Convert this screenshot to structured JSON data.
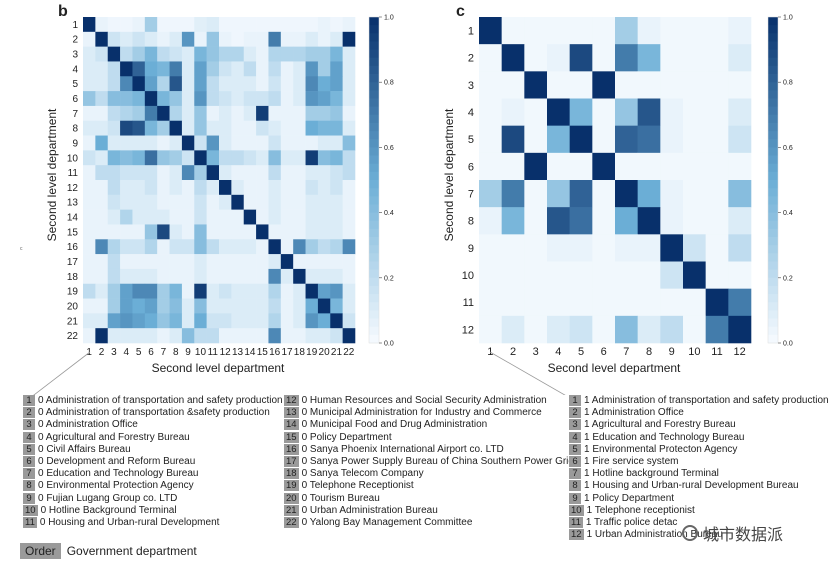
{
  "chart_data": [
    {
      "type": "heatmap",
      "panel_label": "b",
      "xlabel": "Second level department",
      "ylabel": "Second level department",
      "x_ticks": [
        "1",
        "2",
        "3",
        "4",
        "5",
        "6",
        "7",
        "8",
        "9",
        "10",
        "11",
        "12",
        "13",
        "14",
        "15",
        "16",
        "17",
        "18",
        "19",
        "20",
        "21",
        "22"
      ],
      "y_ticks": [
        "1",
        "2",
        "3",
        "4",
        "5",
        "6",
        "7",
        "8",
        "9",
        "10",
        "11",
        "12",
        "13",
        "14",
        "15",
        "16",
        "17",
        "18",
        "19",
        "20",
        "21",
        "22"
      ],
      "colorbar_ticks": [
        "1.0",
        "0.8",
        "0.6",
        "0.4",
        "0.2",
        "0.0"
      ],
      "vmin": 0,
      "vmax": 1,
      "values": [
        [
          1.0,
          0.05,
          0.03,
          0.03,
          0.05,
          0.3,
          0.03,
          0.03,
          0.03,
          0.08,
          0.1,
          0.03,
          0.03,
          0.03,
          0.03,
          0.03,
          0.03,
          0.03,
          0.03,
          0.05,
          0.03,
          0.05
        ],
        [
          0.05,
          1.0,
          0.15,
          0.1,
          0.15,
          0.1,
          0.05,
          0.1,
          0.6,
          0.05,
          0.35,
          0.05,
          0.03,
          0.05,
          0.05,
          0.7,
          0.05,
          0.05,
          0.1,
          0.05,
          0.1,
          1.0
        ],
        [
          0.1,
          0.15,
          1.0,
          0.2,
          0.3,
          0.45,
          0.2,
          0.15,
          0.1,
          0.45,
          0.35,
          0.25,
          0.25,
          0.1,
          0.05,
          0.25,
          0.25,
          0.25,
          0.3,
          0.3,
          0.45,
          0.1
        ],
        [
          0.1,
          0.1,
          0.2,
          1.0,
          0.8,
          0.5,
          0.45,
          0.7,
          0.1,
          0.55,
          0.3,
          0.15,
          0.1,
          0.2,
          0.05,
          0.2,
          0.05,
          0.1,
          0.6,
          0.3,
          0.55,
          0.1
        ],
        [
          0.1,
          0.1,
          0.2,
          0.65,
          1.0,
          0.55,
          0.25,
          0.85,
          0.1,
          0.55,
          0.2,
          0.1,
          0.1,
          0.1,
          0.05,
          0.15,
          0.05,
          0.1,
          0.65,
          0.5,
          0.55,
          0.1
        ],
        [
          0.35,
          0.2,
          0.4,
          0.4,
          0.45,
          1.0,
          0.45,
          0.35,
          0.1,
          0.6,
          0.2,
          0.15,
          0.1,
          0.15,
          0.15,
          0.2,
          0.05,
          0.1,
          0.6,
          0.55,
          0.45,
          0.1
        ],
        [
          0.05,
          0.05,
          0.2,
          0.25,
          0.3,
          0.7,
          1.0,
          0.25,
          0.1,
          0.35,
          0.05,
          0.1,
          0.05,
          0.1,
          0.95,
          0.05,
          0.05,
          0.05,
          0.3,
          0.3,
          0.35,
          0.05
        ],
        [
          0.1,
          0.1,
          0.15,
          0.9,
          0.85,
          0.45,
          0.3,
          1.0,
          0.1,
          0.35,
          0.1,
          0.1,
          0.05,
          0.05,
          0.15,
          0.1,
          0.05,
          0.05,
          0.5,
          0.45,
          0.45,
          0.1
        ],
        [
          0.05,
          0.5,
          0.1,
          0.1,
          0.1,
          0.1,
          0.05,
          0.1,
          1.0,
          0.15,
          0.6,
          0.1,
          0.05,
          0.05,
          0.05,
          0.15,
          0.05,
          0.05,
          0.05,
          0.1,
          0.1,
          0.4
        ],
        [
          0.15,
          0.1,
          0.45,
          0.4,
          0.45,
          0.75,
          0.35,
          0.3,
          0.15,
          1.0,
          0.45,
          0.2,
          0.2,
          0.15,
          0.1,
          0.4,
          0.1,
          0.1,
          0.95,
          0.4,
          0.45,
          0.2
        ],
        [
          0.05,
          0.2,
          0.2,
          0.15,
          0.15,
          0.15,
          0.05,
          0.1,
          0.65,
          0.3,
          1.0,
          0.1,
          0.05,
          0.05,
          0.05,
          0.2,
          0.05,
          0.05,
          0.1,
          0.1,
          0.15,
          0.2
        ],
        [
          0.05,
          0.05,
          0.2,
          0.1,
          0.1,
          0.15,
          0.05,
          0.1,
          0.05,
          0.2,
          0.1,
          1.0,
          0.1,
          0.05,
          0.05,
          0.1,
          0.05,
          0.05,
          0.15,
          0.1,
          0.15,
          0.05
        ],
        [
          0.05,
          0.05,
          0.15,
          0.1,
          0.1,
          0.1,
          0.05,
          0.05,
          0.05,
          0.15,
          0.05,
          0.1,
          1.0,
          0.05,
          0.05,
          0.1,
          0.05,
          0.05,
          0.1,
          0.1,
          0.1,
          0.05
        ],
        [
          0.05,
          0.05,
          0.1,
          0.25,
          0.1,
          0.1,
          0.1,
          0.05,
          0.05,
          0.15,
          0.05,
          0.05,
          0.05,
          1.0,
          0.05,
          0.1,
          0.05,
          0.05,
          0.1,
          0.1,
          0.1,
          0.05
        ],
        [
          0.05,
          0.05,
          0.05,
          0.05,
          0.05,
          0.35,
          0.9,
          0.1,
          0.05,
          0.4,
          0.05,
          0.05,
          0.05,
          0.05,
          1.0,
          0.05,
          0.05,
          0.05,
          0.1,
          0.1,
          0.1,
          0.05
        ],
        [
          0.05,
          0.65,
          0.25,
          0.15,
          0.15,
          0.25,
          0.05,
          0.15,
          0.15,
          0.4,
          0.2,
          0.1,
          0.1,
          0.1,
          0.05,
          1.0,
          0.05,
          0.65,
          0.3,
          0.2,
          0.25,
          0.65
        ],
        [
          0.05,
          0.05,
          0.2,
          0.05,
          0.05,
          0.05,
          0.05,
          0.05,
          0.05,
          0.1,
          0.05,
          0.05,
          0.05,
          0.05,
          0.05,
          0.1,
          1.0,
          0.05,
          0.05,
          0.05,
          0.05,
          0.05
        ],
        [
          0.05,
          0.05,
          0.2,
          0.1,
          0.1,
          0.1,
          0.05,
          0.05,
          0.05,
          0.1,
          0.05,
          0.05,
          0.05,
          0.05,
          0.05,
          0.65,
          0.1,
          1.0,
          0.1,
          0.1,
          0.1,
          0.05
        ],
        [
          0.2,
          0.1,
          0.3,
          0.55,
          0.65,
          0.65,
          0.3,
          0.45,
          0.05,
          0.95,
          0.1,
          0.15,
          0.1,
          0.1,
          0.1,
          0.25,
          0.05,
          0.1,
          1.0,
          0.55,
          0.6,
          0.1
        ],
        [
          0.05,
          0.05,
          0.3,
          0.55,
          0.5,
          0.55,
          0.3,
          0.4,
          0.1,
          0.4,
          0.1,
          0.1,
          0.1,
          0.1,
          0.1,
          0.2,
          0.05,
          0.1,
          0.5,
          1.0,
          0.45,
          0.1
        ],
        [
          0.1,
          0.1,
          0.55,
          0.6,
          0.55,
          0.5,
          0.35,
          0.45,
          0.1,
          0.5,
          0.15,
          0.15,
          0.1,
          0.1,
          0.1,
          0.25,
          0.05,
          0.1,
          0.6,
          0.5,
          1.0,
          0.15
        ],
        [
          0.05,
          1.0,
          0.1,
          0.1,
          0.1,
          0.1,
          0.05,
          0.1,
          0.4,
          0.2,
          0.2,
          0.05,
          0.05,
          0.05,
          0.05,
          0.65,
          0.05,
          0.05,
          0.1,
          0.1,
          0.15,
          1.0
        ]
      ]
    },
    {
      "type": "heatmap",
      "panel_label": "c",
      "xlabel": "Second level department",
      "ylabel": "Second level department",
      "x_ticks": [
        "1",
        "2",
        "3",
        "4",
        "5",
        "6",
        "7",
        "8",
        "9",
        "10",
        "11",
        "12"
      ],
      "y_ticks": [
        "1",
        "2",
        "3",
        "4",
        "5",
        "6",
        "7",
        "8",
        "9",
        "10",
        "11",
        "12"
      ],
      "colorbar_ticks": [
        "1.0",
        "0.8",
        "0.6",
        "0.4",
        "0.2",
        "0.0"
      ],
      "vmin": 0,
      "vmax": 1,
      "values": [
        [
          1.0,
          0.02,
          0.02,
          0.02,
          0.02,
          0.02,
          0.3,
          0.05,
          0.02,
          0.02,
          0.02,
          0.05
        ],
        [
          0.02,
          1.0,
          0.02,
          0.05,
          0.9,
          0.02,
          0.7,
          0.45,
          0.02,
          0.02,
          0.02,
          0.1
        ],
        [
          0.02,
          0.02,
          1.0,
          0.02,
          0.02,
          1.0,
          0.02,
          0.02,
          0.02,
          0.02,
          0.02,
          0.02
        ],
        [
          0.02,
          0.05,
          0.02,
          1.0,
          0.45,
          0.02,
          0.35,
          0.85,
          0.05,
          0.02,
          0.02,
          0.1
        ],
        [
          0.02,
          0.9,
          0.02,
          0.45,
          1.0,
          0.02,
          0.8,
          0.75,
          0.05,
          0.02,
          0.02,
          0.15
        ],
        [
          0.02,
          0.02,
          1.0,
          0.02,
          0.02,
          1.0,
          0.02,
          0.02,
          0.02,
          0.02,
          0.02,
          0.02
        ],
        [
          0.3,
          0.7,
          0.02,
          0.35,
          0.8,
          0.02,
          1.0,
          0.5,
          0.05,
          0.02,
          0.02,
          0.4
        ],
        [
          0.05,
          0.45,
          0.02,
          0.85,
          0.75,
          0.02,
          0.5,
          1.0,
          0.05,
          0.02,
          0.02,
          0.1
        ],
        [
          0.02,
          0.02,
          0.02,
          0.05,
          0.05,
          0.02,
          0.05,
          0.05,
          1.0,
          0.15,
          0.02,
          0.2
        ],
        [
          0.02,
          0.02,
          0.02,
          0.02,
          0.02,
          0.02,
          0.02,
          0.02,
          0.15,
          1.0,
          0.02,
          0.02
        ],
        [
          0.02,
          0.02,
          0.02,
          0.02,
          0.02,
          0.02,
          0.02,
          0.02,
          0.02,
          0.02,
          1.0,
          0.7
        ],
        [
          0.02,
          0.1,
          0.02,
          0.1,
          0.15,
          0.02,
          0.4,
          0.1,
          0.2,
          0.02,
          0.7,
          1.0
        ]
      ]
    }
  ],
  "legend_b": {
    "col1": [
      {
        "num": "1",
        "text": "0 Administration of transportation and safety production"
      },
      {
        "num": "2",
        "text": "0 Administration of transportation &safety production"
      },
      {
        "num": "3",
        "text": "0 Administration Office"
      },
      {
        "num": "4",
        "text": "0 Agricultural and Forestry Bureau"
      },
      {
        "num": "5",
        "text": "0 Civil Affairs Bureau"
      },
      {
        "num": "6",
        "text": "0 Development and Reform Bureau"
      },
      {
        "num": "7",
        "text": "0 Education and Technology Bureau"
      },
      {
        "num": "8",
        "text": "0 Environmental Protection Agency"
      },
      {
        "num": "9",
        "text": "0 Fujian Lugang Group co. LTD"
      },
      {
        "num": "10",
        "text": "0 Hotline Background Terminal"
      },
      {
        "num": "11",
        "text": "0 Housing and Urban-rural Development"
      }
    ],
    "col2": [
      {
        "num": "12",
        "text": "0 Human Resources and Social Security Administration"
      },
      {
        "num": "13",
        "text": "0 Municipal Administration for Industry and Commerce"
      },
      {
        "num": "14",
        "text": "0 Municipal Food and Drug Administration"
      },
      {
        "num": "15",
        "text": "0 Policy Department"
      },
      {
        "num": "16",
        "text": "0 Sanya Phoenix International Airport co. LTD"
      },
      {
        "num": "17",
        "text": "0 Sanya Power Supply Bureau of China Southern Power Grid"
      },
      {
        "num": "18",
        "text": "0 Sanya Telecom Company"
      },
      {
        "num": "19",
        "text": "0 Telephone Receptionist"
      },
      {
        "num": "20",
        "text": "0 Tourism Bureau"
      },
      {
        "num": "21",
        "text": "0 Urban Administration Bureau"
      },
      {
        "num": "22",
        "text": "0 Yalong Bay Management Committee"
      }
    ]
  },
  "legend_c": [
    {
      "num": "1",
      "text": "1 Administration of transportation and safety production"
    },
    {
      "num": "2",
      "text": "1 Administration Office"
    },
    {
      "num": "3",
      "text": "1 Agricultural and Forestry Bureau"
    },
    {
      "num": "4",
      "text": "1 Education and Technology Bureau"
    },
    {
      "num": "5",
      "text": "1 Environmental Protecton Agency"
    },
    {
      "num": "6",
      "text": "1 Fire service system"
    },
    {
      "num": "7",
      "text": "1 Hotline background Terminal"
    },
    {
      "num": "8",
      "text": "1 Housing and Urban-rural Development Bureau"
    },
    {
      "num": "9",
      "text": "1 Policy Department"
    },
    {
      "num": "10",
      "text": "1 Telephone receptionist"
    },
    {
      "num": "11",
      "text": "1 Traffic police detac"
    },
    {
      "num": "12",
      "text": "1 Urban Administration Bureau"
    }
  ],
  "order_key": {
    "box": "Order",
    "text": "Government department"
  },
  "watermark": {
    "text": "城市数据派"
  },
  "stray_mark": "c",
  "colors": {
    "low": "#f7fbff",
    "mid": "#6baed6",
    "high": "#08306b"
  }
}
